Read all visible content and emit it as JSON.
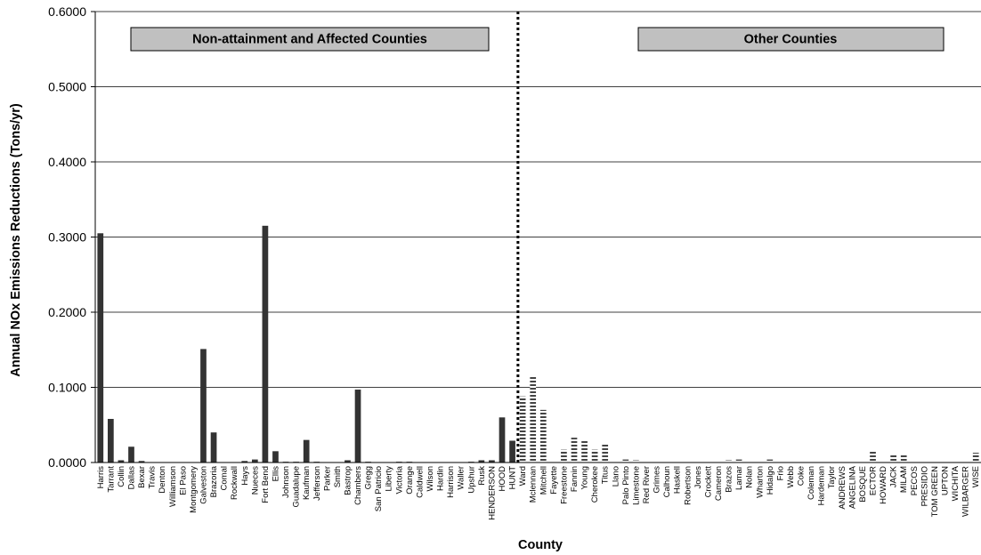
{
  "chart_data": {
    "type": "bar",
    "title": "",
    "xlabel": "County",
    "ylabel": "Annual NOx Emissions Reductions (Tons/yr)",
    "ylim": [
      0,
      0.6
    ],
    "yticks": [
      "0.0000",
      "0.1000",
      "0.2000",
      "0.3000",
      "0.4000",
      "0.5000",
      "0.6000"
    ],
    "grid": "horizontal",
    "legend": "none",
    "colors": {
      "group1": "#333333",
      "group2_stripe": "#444444",
      "bg": "#ffffff"
    },
    "group_labels": [
      "Non-attainment and Affected Counties",
      "Other Counties"
    ],
    "categories": [
      "Harris",
      "Tarrant",
      "Collin",
      "Dallas",
      "Bexar",
      "Travis",
      "Denton",
      "Williamson",
      "El Paso",
      "Montgomery",
      "Galveston",
      "Brazoria",
      "Comal",
      "Rockwall",
      "Hays",
      "Nueces",
      "Fort Bend",
      "Ellis",
      "Johnson",
      "Guadalupe",
      "Kaufman",
      "Jefferson",
      "Parker",
      "Smith",
      "Bastrop",
      "Chambers",
      "Gregg",
      "San Patricio",
      "Liberty",
      "Victoria",
      "Orange",
      "Caldwell",
      "Wilson",
      "Hardin",
      "Harrison",
      "Waller",
      "Upshur",
      "Rusk",
      "HENDERSON",
      "HOOD",
      "HUNT",
      "Ward",
      "Mclennan",
      "Mitchell",
      "Fayette",
      "Freestone",
      "Fannin",
      "Young",
      "Cherokee",
      "Titus",
      "Llano",
      "Palo Pinto",
      "Limestone",
      "Red River",
      "Grimes",
      "Calhoun",
      "Haskell",
      "Robertson",
      "Jones",
      "Crockett",
      "Cameron",
      "Brazos",
      "Lamar",
      "Nolan",
      "Wharton",
      "Hidalgo",
      "Frio",
      "Webb",
      "Coke",
      "Coleman",
      "Hardeman",
      "Taylor",
      "ANDREWS",
      "ANGELINA",
      "BOSQUE",
      "ECTOR",
      "HOWARD",
      "JACK",
      "MILAM",
      "PECOS",
      "PRESIDIO",
      "TOM GREEN",
      "UPTON",
      "WICHITA",
      "WILBARGER",
      "WISE"
    ],
    "group_boundary_after": "HUNT",
    "series": [
      {
        "values": [
          0.305,
          0.058,
          0.003,
          0.021,
          0.002,
          0.0005,
          0.0005,
          0.0005,
          0.0005,
          0.0005,
          0.151,
          0.04,
          0.0005,
          0.0005,
          0.002,
          0.004,
          0.315,
          0.015,
          0.001,
          0.001,
          0.03,
          0.001,
          0.0005,
          0.0005,
          0.003,
          0.097,
          0.001,
          0.0005,
          0.0005,
          0.001,
          0.001,
          0.0005,
          0.0005,
          0.0005,
          0.0005,
          0.0005,
          0.001,
          0.003,
          0.003,
          0.06,
          0.029,
          0.088,
          0.116,
          0.07,
          0.001,
          0.017,
          0.033,
          0.03,
          0.017,
          0.025,
          0.001,
          0.004,
          0.003,
          0.001,
          0.001,
          0.002,
          0.001,
          0.002,
          0.0005,
          0.0005,
          0.001,
          0.003,
          0.004,
          0.002,
          0.0005,
          0.004,
          0.001,
          0.0005,
          0.0005,
          0.0005,
          0.0005,
          0.0005,
          0.0005,
          0.0005,
          0.001,
          0.016,
          0.001,
          0.011,
          0.011,
          0.0005,
          0.0005,
          0.0005,
          0.0005,
          0.0005,
          0.0005,
          0.013
        ]
      }
    ]
  }
}
